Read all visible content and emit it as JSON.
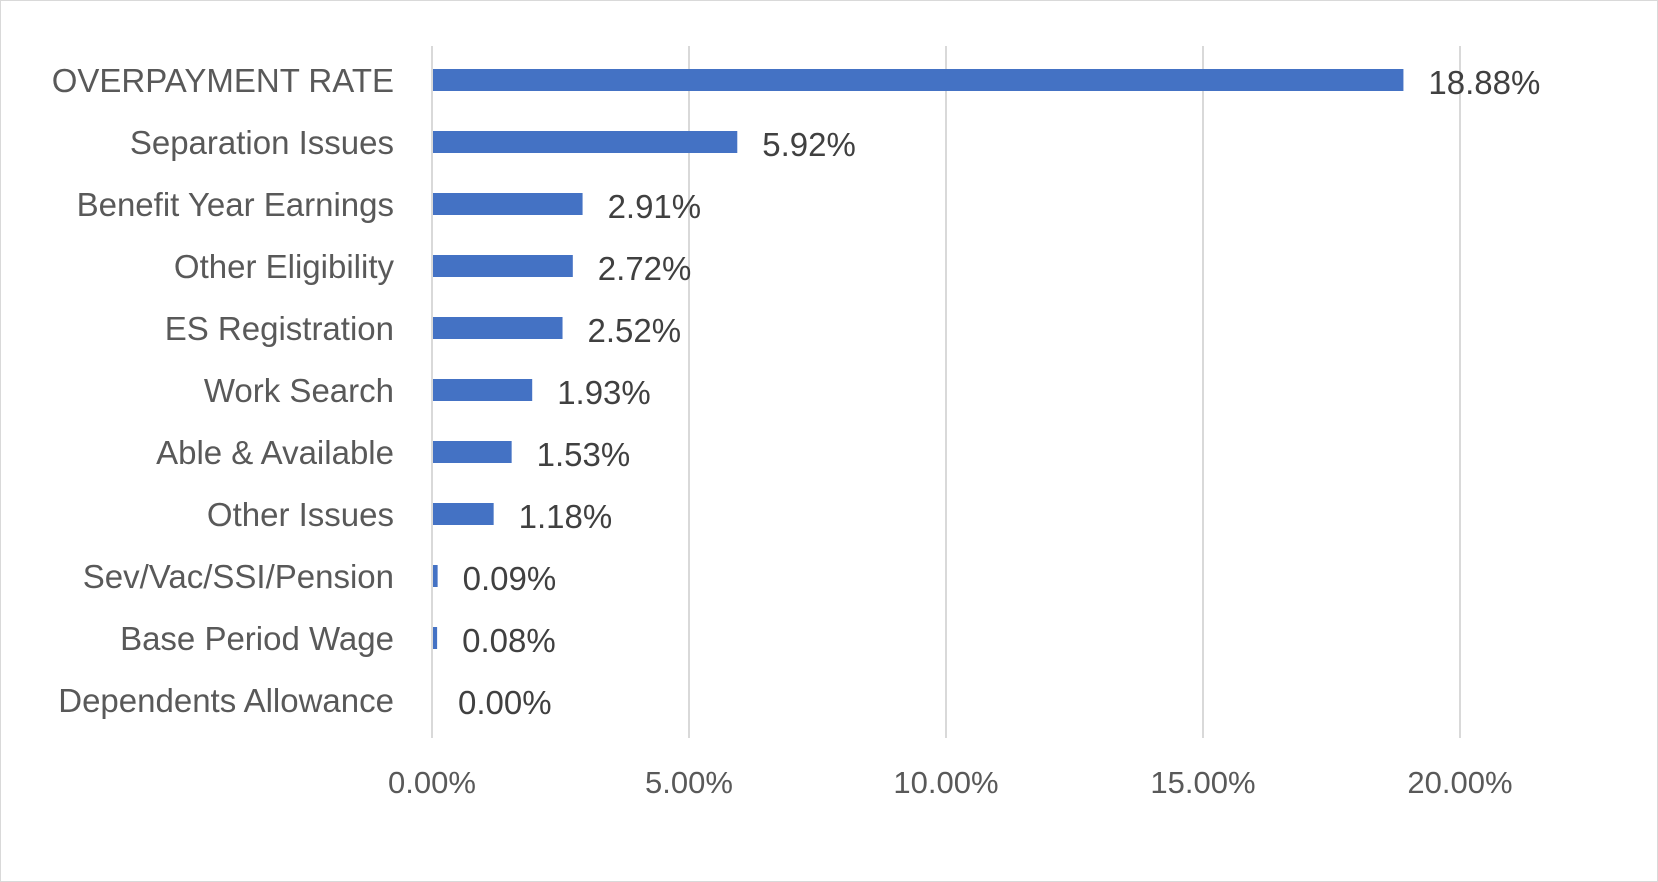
{
  "chart_data": {
    "type": "bar",
    "orientation": "horizontal",
    "categories": [
      "OVERPAYMENT RATE",
      "Separation Issues",
      "Benefit Year Earnings",
      "Other Eligibility",
      "ES Registration",
      "Work Search",
      "Able & Available",
      "Other Issues",
      "Sev/Vac/SSI/Pension",
      "Base Period Wage",
      "Dependents Allowance"
    ],
    "values": [
      18.88,
      5.92,
      2.91,
      2.72,
      2.52,
      1.93,
      1.53,
      1.18,
      0.09,
      0.08,
      0.0
    ],
    "data_labels": [
      "18.88%",
      "5.92%",
      "2.91%",
      "2.72%",
      "2.52%",
      "1.93%",
      "1.53%",
      "1.18%",
      "0.09%",
      "0.08%",
      "0.00%"
    ],
    "xlim": [
      0,
      20
    ],
    "x_ticks": [
      0,
      5,
      10,
      15,
      20
    ],
    "x_tick_labels": [
      "0.00%",
      "5.00%",
      "10.00%",
      "15.00%",
      "20.00%"
    ],
    "title": "",
    "xlabel": "",
    "ylabel": "",
    "grid": "vertical",
    "legend": "none",
    "bar_color": "#4472c4",
    "grid_color": "#d9d9d9"
  }
}
